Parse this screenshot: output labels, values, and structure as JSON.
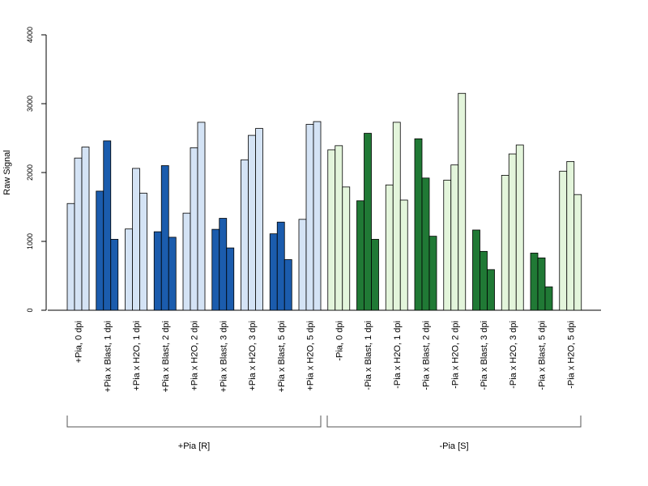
{
  "chart_data": {
    "type": "bar",
    "title": "",
    "xlabel": "",
    "ylabel": "Raw Signal",
    "ylim": [
      0,
      4000
    ],
    "yticks": [
      0,
      1000,
      2000,
      3000,
      4000
    ],
    "grid": false,
    "legend": "none",
    "categories": [
      "+Pia, 0 dpi",
      "+Pia x Blast, 1 dpi",
      "+Pia x H2O, 1 dpi",
      "+Pia x Blast, 2 dpi",
      "+Pia x H2O, 2 dpi",
      "+Pia x Blast, 3 dpi",
      "+Pia x H2O, 3 dpi",
      "+Pia x Blast, 5 dpi",
      "+Pia x H2O, 5 dpi",
      "-Pia, 0 dpi",
      "-Pia x Blast, 1 dpi",
      "-Pia x H2O, 1 dpi",
      "-Pia x Blast, 2 dpi",
      "-Pia x H2O, 2 dpi",
      "-Pia x Blast, 3 dpi",
      "-Pia x H2O, 3 dpi",
      "-Pia x Blast, 5 dpi",
      "-Pia x H2O, 5 dpi"
    ],
    "series": [
      {
        "values": [
          1550,
          1730,
          1180,
          1140,
          1410,
          1175,
          2185,
          1110,
          1320,
          2330,
          1590,
          1820,
          2490,
          1890,
          1165,
          1960,
          830,
          2020
        ]
      },
      {
        "values": [
          2210,
          2460,
          2060,
          2100,
          2360,
          1335,
          2540,
          1280,
          2700,
          2390,
          2570,
          2730,
          1920,
          2110,
          855,
          2270,
          760,
          2160
        ]
      },
      {
        "values": [
          2370,
          1030,
          1700,
          1060,
          2730,
          905,
          2640,
          735,
          2740,
          1790,
          1030,
          1600,
          1075,
          3150,
          590,
          2400,
          340,
          1680
        ]
      }
    ],
    "bar_colors": [
      "#d4e3f5",
      "#1b5cad",
      "#d4e3f5",
      "#1b5cad",
      "#d4e3f5",
      "#1b5cad",
      "#d4e3f5",
      "#1b5cad",
      "#d4e3f5",
      "#e3f5db",
      "#207935",
      "#e3f5db",
      "#207935",
      "#e3f5db",
      "#207935",
      "#e3f5db",
      "#207935",
      "#e3f5db"
    ],
    "groups": [
      {
        "label": "+Pia [R]",
        "from": 0,
        "to": 8
      },
      {
        "label": "-Pia [S]",
        "from": 9,
        "to": 17
      }
    ]
  }
}
